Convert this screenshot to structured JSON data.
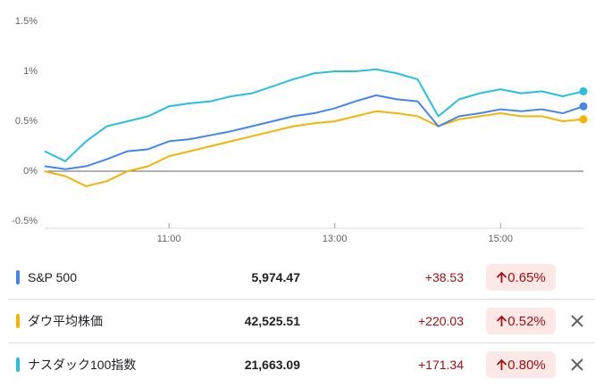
{
  "chart_data": {
    "type": "line",
    "x": [
      9.5,
      9.75,
      10,
      10.25,
      10.5,
      10.75,
      11,
      11.25,
      11.5,
      11.75,
      12,
      12.25,
      12.5,
      12.75,
      13,
      13.25,
      13.5,
      13.75,
      14,
      14.25,
      14.5,
      14.75,
      15,
      15.25,
      15.5,
      15.75,
      16
    ],
    "xlim": [
      9.5,
      16
    ],
    "xticks": [
      {
        "value": 11,
        "label": "11:00"
      },
      {
        "value": 13,
        "label": "13:00"
      },
      {
        "value": 15,
        "label": "15:00"
      }
    ],
    "ylim": [
      -0.5,
      1.5
    ],
    "yticks": [
      {
        "value": -0.5,
        "label": "-0.5%"
      },
      {
        "value": 0,
        "label": "0%"
      },
      {
        "value": 0.5,
        "label": "0.5%"
      },
      {
        "value": 1,
        "label": "1%"
      },
      {
        "value": 1.5,
        "label": "1.5%"
      }
    ],
    "series": [
      {
        "name": "S&P 500",
        "color": "#4285f4",
        "values": [
          0.05,
          0.02,
          0.05,
          0.12,
          0.2,
          0.22,
          0.3,
          0.32,
          0.36,
          0.4,
          0.45,
          0.5,
          0.55,
          0.58,
          0.63,
          0.7,
          0.76,
          0.72,
          0.7,
          0.45,
          0.55,
          0.58,
          0.62,
          0.6,
          0.62,
          0.58,
          0.65
        ]
      },
      {
        "name": "ダウ平均株価",
        "color": "#f4b400",
        "values": [
          0.0,
          -0.05,
          -0.15,
          -0.1,
          0.0,
          0.05,
          0.15,
          0.2,
          0.25,
          0.3,
          0.35,
          0.4,
          0.45,
          0.48,
          0.5,
          0.55,
          0.6,
          0.58,
          0.55,
          0.45,
          0.52,
          0.55,
          0.58,
          0.55,
          0.55,
          0.5,
          0.52
        ]
      },
      {
        "name": "ナスダック100指数",
        "color": "#24c1e0",
        "values": [
          0.2,
          0.1,
          0.3,
          0.45,
          0.5,
          0.55,
          0.65,
          0.68,
          0.7,
          0.75,
          0.78,
          0.85,
          0.92,
          0.98,
          1.0,
          1.0,
          1.02,
          0.98,
          0.92,
          0.55,
          0.72,
          0.78,
          0.82,
          0.78,
          0.8,
          0.75,
          0.8
        ]
      }
    ]
  },
  "table": {
    "rows": [
      {
        "price": "5,974.47",
        "change": "+38.53",
        "percent": "0.65%"
      },
      {
        "price": "42,525.51",
        "change": "+220.03",
        "percent": "0.52%"
      },
      {
        "price": "21,663.09",
        "change": "+171.34",
        "percent": "0.80%"
      }
    ]
  }
}
